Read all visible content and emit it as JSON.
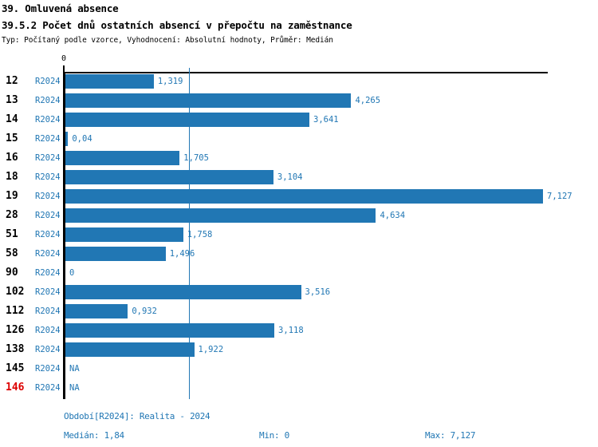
{
  "header": {
    "title1": "39. Omluvená absence",
    "title2": "39.5.2 Počet dnů ostatních absencí v přepočtu na zaměstnance",
    "subtitle": "Typ: Počítaný podle vzorce, Vyhodnocení: Absolutní hodnoty, Průměr: Medián"
  },
  "chart_data": {
    "type": "bar",
    "orientation": "horizontal",
    "title": "39.5.2 Počet dnů ostatních absencí v přepočtu na zaměstnance",
    "xlabel": "",
    "ylabel": "",
    "xlim": [
      0,
      7.127
    ],
    "grid": false,
    "axis_zero_label": "0",
    "median_line_value": 1.84,
    "series_name": "R2024",
    "categories": [
      "12",
      "13",
      "14",
      "15",
      "16",
      "18",
      "19",
      "28",
      "51",
      "58",
      "90",
      "102",
      "112",
      "126",
      "138",
      "145",
      "146"
    ],
    "rows": [
      {
        "category": "12",
        "period": "R2024",
        "value": 1.319,
        "label": "1,319"
      },
      {
        "category": "13",
        "period": "R2024",
        "value": 4.265,
        "label": "4,265"
      },
      {
        "category": "14",
        "period": "R2024",
        "value": 3.641,
        "label": "3,641"
      },
      {
        "category": "15",
        "period": "R2024",
        "value": 0.04,
        "label": "0,04"
      },
      {
        "category": "16",
        "period": "R2024",
        "value": 1.705,
        "label": "1,705"
      },
      {
        "category": "18",
        "period": "R2024",
        "value": 3.104,
        "label": "3,104"
      },
      {
        "category": "19",
        "period": "R2024",
        "value": 7.127,
        "label": "7,127"
      },
      {
        "category": "28",
        "period": "R2024",
        "value": 4.634,
        "label": "4,634"
      },
      {
        "category": "51",
        "period": "R2024",
        "value": 1.758,
        "label": "1,758"
      },
      {
        "category": "58",
        "period": "R2024",
        "value": 1.496,
        "label": "1,496"
      },
      {
        "category": "90",
        "period": "R2024",
        "value": 0,
        "label": "0"
      },
      {
        "category": "102",
        "period": "R2024",
        "value": 3.516,
        "label": "3,516"
      },
      {
        "category": "112",
        "period": "R2024",
        "value": 0.932,
        "label": "0,932"
      },
      {
        "category": "126",
        "period": "R2024",
        "value": 3.118,
        "label": "3,118"
      },
      {
        "category": "138",
        "period": "R2024",
        "value": 1.922,
        "label": "1,922"
      },
      {
        "category": "145",
        "period": "R2024",
        "value": null,
        "label": "NA",
        "category_color": "#dd0000_no",
        "note": ""
      },
      {
        "category": "146",
        "period": "R2024",
        "value": null,
        "label": "NA",
        "category_color": "#dd0000"
      }
    ]
  },
  "footer": {
    "period_line": "Období[R2024]: Realita - 2024",
    "median": "Medián: 1,84",
    "min": "Min: 0",
    "max": "Max: 7,127"
  },
  "colors": {
    "bar": "#2177b4",
    "accent_text": "#2177b4",
    "median_line": "#2177b4",
    "na_category_red": "#dd0000",
    "axis_black": "#000000"
  }
}
